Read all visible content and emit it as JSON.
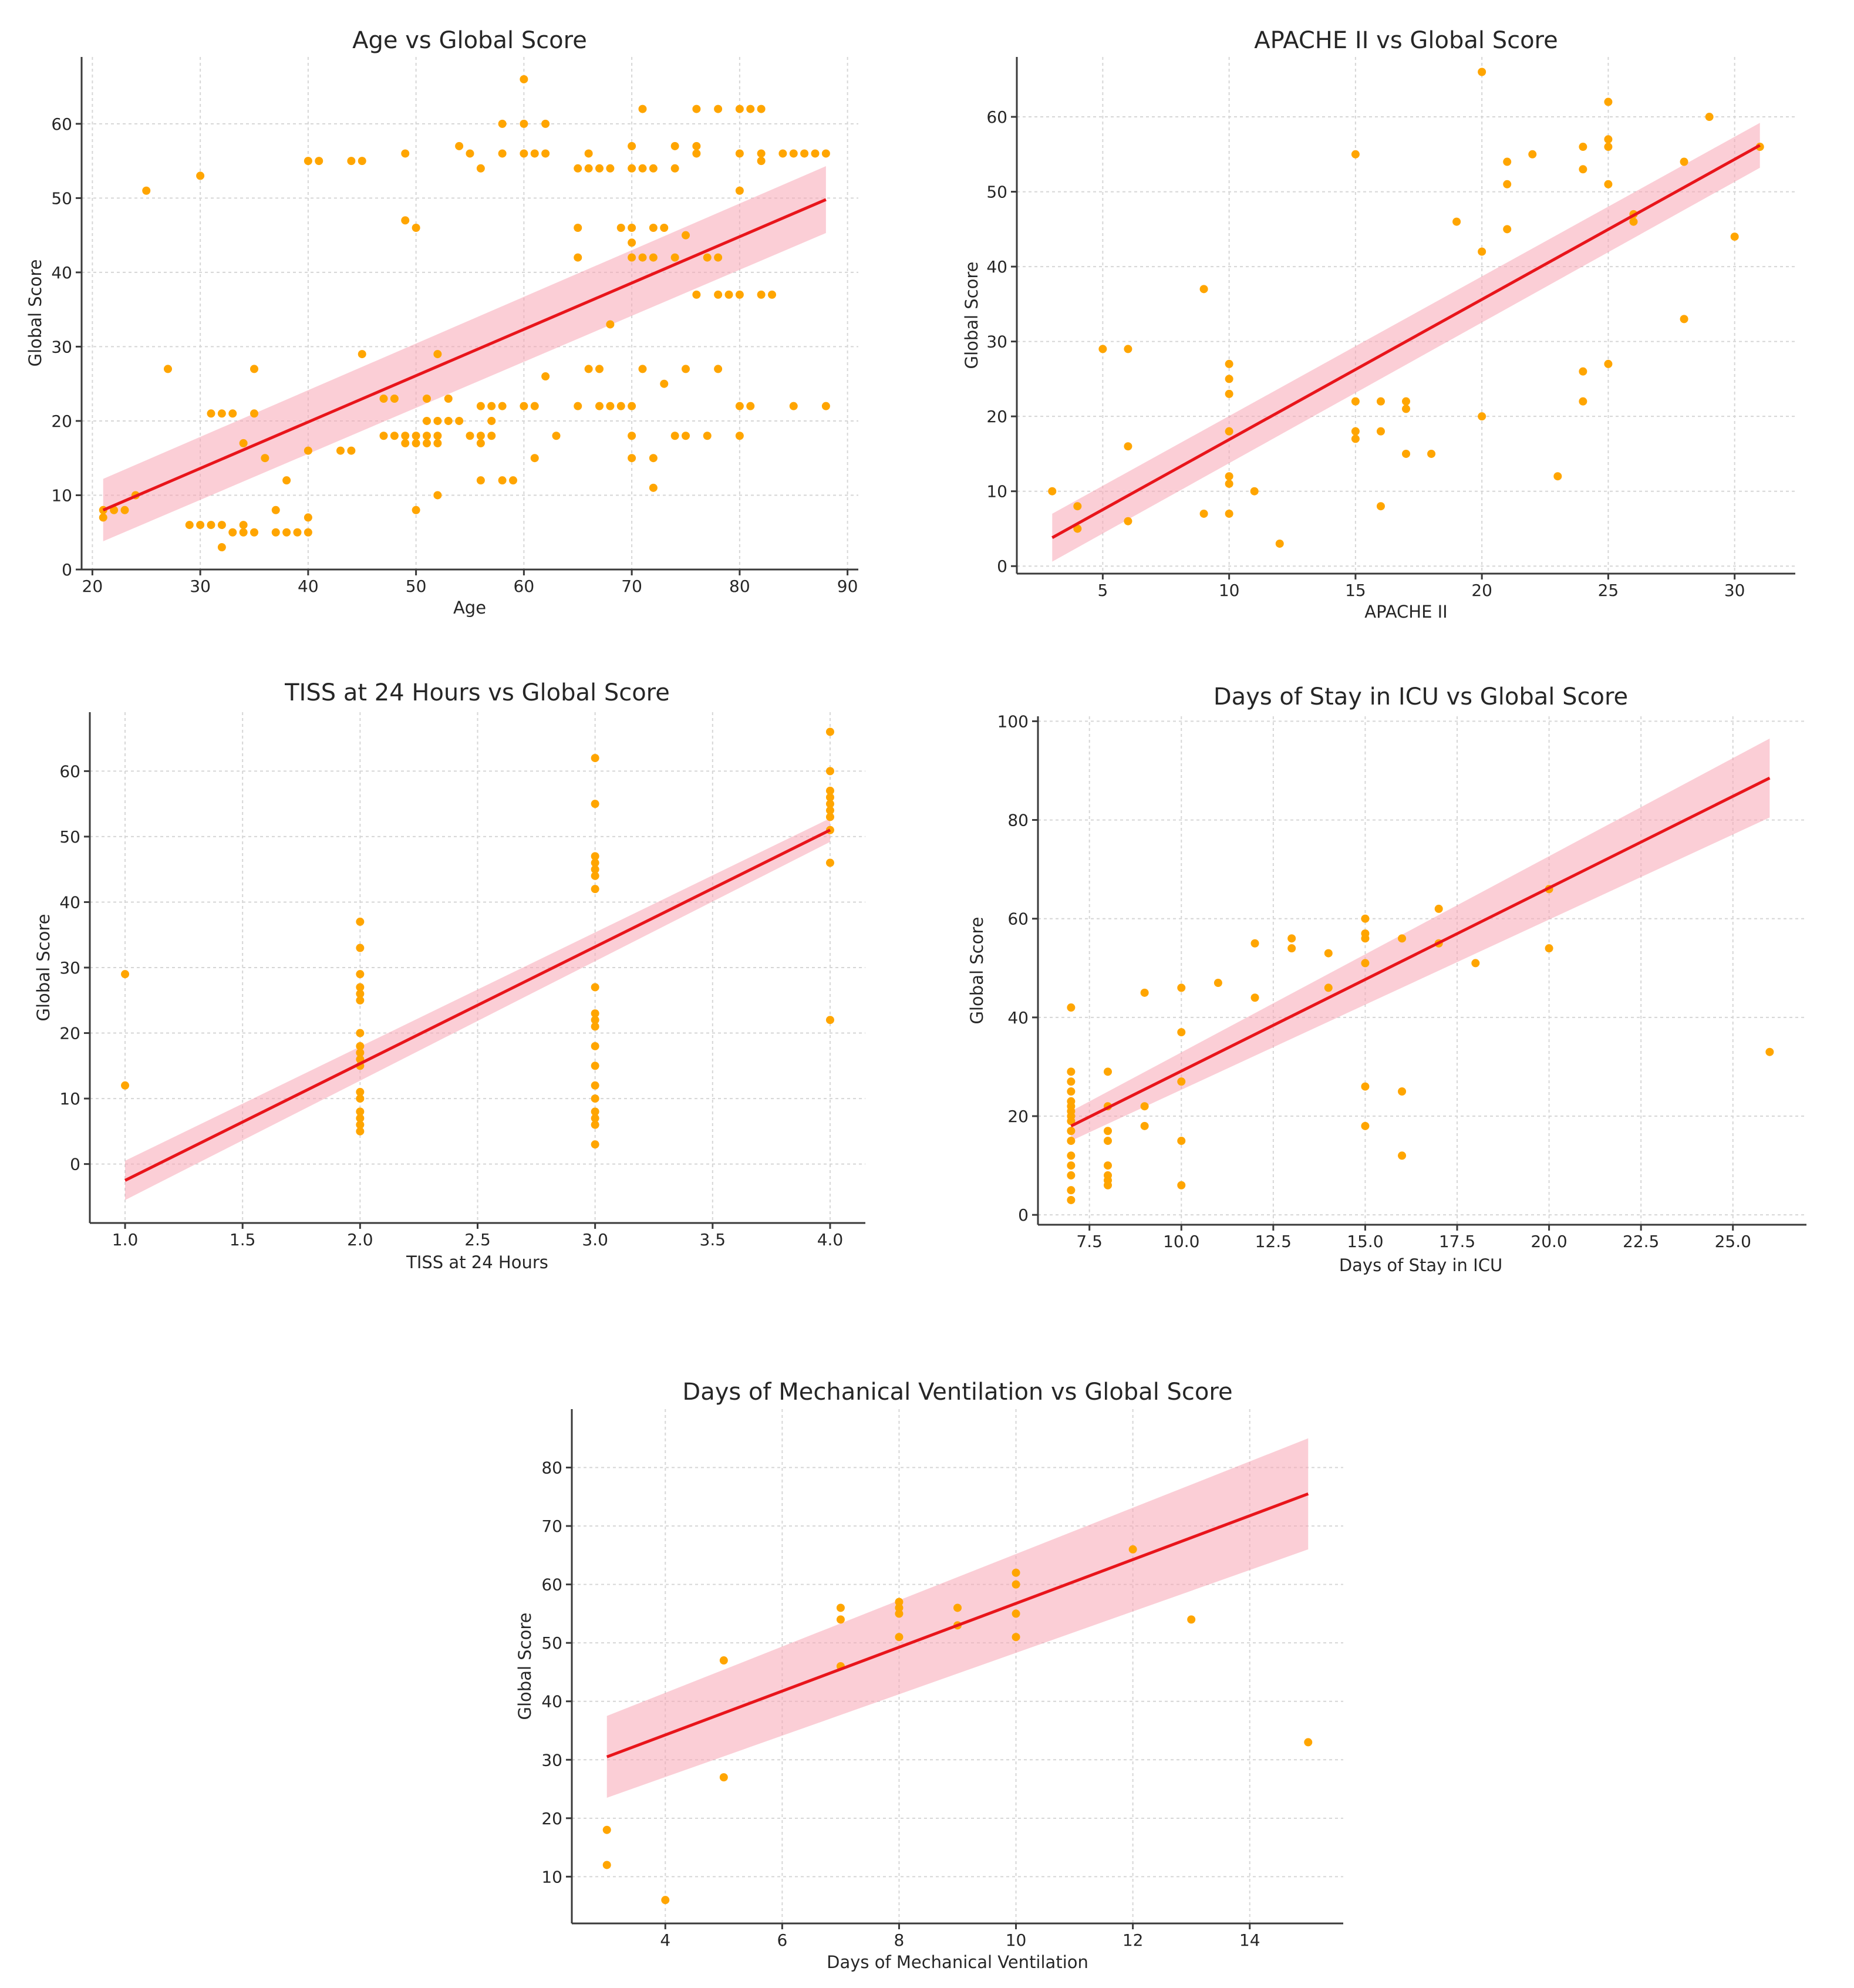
{
  "chart_data": [
    {
      "id": "age",
      "type": "scatter",
      "title": "Age vs Global Score",
      "xlabel": "Age",
      "ylabel": "Global Score",
      "xlim": [
        19,
        91
      ],
      "ylim": [
        0,
        69
      ],
      "xticks": [
        20,
        30,
        40,
        50,
        60,
        70,
        80,
        90
      ],
      "yticks": [
        0,
        10,
        20,
        30,
        40,
        50,
        60
      ],
      "x_decimals": 0,
      "grid": true,
      "points": [
        [
          21,
          7
        ],
        [
          21,
          8
        ],
        [
          22,
          8
        ],
        [
          23,
          8
        ],
        [
          24,
          10
        ],
        [
          25,
          51
        ],
        [
          27,
          27
        ],
        [
          29,
          6
        ],
        [
          30,
          6
        ],
        [
          30,
          53
        ],
        [
          31,
          6
        ],
        [
          31,
          21
        ],
        [
          32,
          3
        ],
        [
          32,
          6
        ],
        [
          32,
          21
        ],
        [
          33,
          5
        ],
        [
          33,
          21
        ],
        [
          34,
          5
        ],
        [
          34,
          6
        ],
        [
          34,
          17
        ],
        [
          35,
          5
        ],
        [
          35,
          21
        ],
        [
          35,
          27
        ],
        [
          36,
          15
        ],
        [
          37,
          5
        ],
        [
          37,
          8
        ],
        [
          38,
          5
        ],
        [
          38,
          12
        ],
        [
          39,
          5
        ],
        [
          40,
          5
        ],
        [
          40,
          7
        ],
        [
          40,
          16
        ],
        [
          40,
          55
        ],
        [
          41,
          55
        ],
        [
          43,
          16
        ],
        [
          44,
          16
        ],
        [
          44,
          55
        ],
        [
          45,
          29
        ],
        [
          45,
          55
        ],
        [
          47,
          18
        ],
        [
          47,
          23
        ],
        [
          48,
          23
        ],
        [
          48,
          18
        ],
        [
          49,
          17
        ],
        [
          49,
          18
        ],
        [
          49,
          47
        ],
        [
          49,
          56
        ],
        [
          50,
          8
        ],
        [
          50,
          17
        ],
        [
          50,
          18
        ],
        [
          50,
          46
        ],
        [
          51,
          17
        ],
        [
          51,
          18
        ],
        [
          51,
          20
        ],
        [
          51,
          23
        ],
        [
          52,
          10
        ],
        [
          52,
          17
        ],
        [
          52,
          18
        ],
        [
          52,
          20
        ],
        [
          52,
          29
        ],
        [
          53,
          20
        ],
        [
          53,
          23
        ],
        [
          54,
          20
        ],
        [
          54,
          57
        ],
        [
          55,
          18
        ],
        [
          55,
          56
        ],
        [
          56,
          12
        ],
        [
          56,
          17
        ],
        [
          56,
          18
        ],
        [
          56,
          22
        ],
        [
          56,
          54
        ],
        [
          57,
          20
        ],
        [
          57,
          18
        ],
        [
          57,
          22
        ],
        [
          58,
          12
        ],
        [
          58,
          22
        ],
        [
          58,
          56
        ],
        [
          58,
          60
        ],
        [
          59,
          12
        ],
        [
          60,
          22
        ],
        [
          60,
          56
        ],
        [
          60,
          60
        ],
        [
          60,
          66
        ],
        [
          61,
          15
        ],
        [
          61,
          22
        ],
        [
          61,
          56
        ],
        [
          62,
          26
        ],
        [
          62,
          56
        ],
        [
          62,
          60
        ],
        [
          63,
          18
        ],
        [
          65,
          22
        ],
        [
          65,
          42
        ],
        [
          65,
          46
        ],
        [
          65,
          54
        ],
        [
          66,
          27
        ],
        [
          66,
          54
        ],
        [
          66,
          56
        ],
        [
          67,
          22
        ],
        [
          67,
          27
        ],
        [
          67,
          54
        ],
        [
          68,
          22
        ],
        [
          68,
          33
        ],
        [
          68,
          54
        ],
        [
          69,
          22
        ],
        [
          69,
          46
        ],
        [
          70,
          15
        ],
        [
          70,
          18
        ],
        [
          70,
          22
        ],
        [
          70,
          42
        ],
        [
          70,
          44
        ],
        [
          70,
          46
        ],
        [
          70,
          54
        ],
        [
          70,
          57
        ],
        [
          71,
          27
        ],
        [
          71,
          42
        ],
        [
          71,
          54
        ],
        [
          71,
          62
        ],
        [
          72,
          11
        ],
        [
          72,
          15
        ],
        [
          72,
          42
        ],
        [
          72,
          46
        ],
        [
          72,
          54
        ],
        [
          73,
          25
        ],
        [
          73,
          46
        ],
        [
          74,
          18
        ],
        [
          74,
          42
        ],
        [
          74,
          54
        ],
        [
          74,
          57
        ],
        [
          75,
          18
        ],
        [
          75,
          27
        ],
        [
          75,
          45
        ],
        [
          76,
          37
        ],
        [
          76,
          56
        ],
        [
          76,
          57
        ],
        [
          76,
          62
        ],
        [
          77,
          18
        ],
        [
          77,
          42
        ],
        [
          78,
          27
        ],
        [
          78,
          37
        ],
        [
          78,
          42
        ],
        [
          78,
          62
        ],
        [
          79,
          37
        ],
        [
          80,
          18
        ],
        [
          80,
          22
        ],
        [
          80,
          37
        ],
        [
          80,
          51
        ],
        [
          80,
          56
        ],
        [
          80,
          62
        ],
        [
          81,
          22
        ],
        [
          81,
          62
        ],
        [
          82,
          55
        ],
        [
          82,
          56
        ],
        [
          82,
          62
        ],
        [
          82,
          37
        ],
        [
          83,
          37
        ],
        [
          84,
          56
        ],
        [
          85,
          22
        ],
        [
          85,
          56
        ],
        [
          86,
          56
        ],
        [
          87,
          56
        ],
        [
          88,
          22
        ],
        [
          88,
          56
        ]
      ],
      "fit": {
        "x0": 21,
        "y0": 8.0,
        "x1": 88,
        "y1": 49.8,
        "ci0": 4.2,
        "ci1": 4.5
      }
    },
    {
      "id": "apache",
      "type": "scatter",
      "title": "APACHE II vs Global Score",
      "xlabel": "APACHE II",
      "ylabel": "Global Score",
      "xlim": [
        1.6,
        32.4
      ],
      "ylim": [
        -1,
        68
      ],
      "xticks": [
        5,
        10,
        15,
        20,
        25,
        30
      ],
      "yticks": [
        0,
        10,
        20,
        30,
        40,
        50,
        60
      ],
      "x_decimals": 0,
      "grid": true,
      "points": [
        [
          3,
          10
        ],
        [
          4,
          5
        ],
        [
          4,
          8
        ],
        [
          5,
          29
        ],
        [
          6,
          6
        ],
        [
          6,
          16
        ],
        [
          6,
          29
        ],
        [
          9,
          7
        ],
        [
          9,
          37
        ],
        [
          10,
          7
        ],
        [
          10,
          11
        ],
        [
          10,
          12
        ],
        [
          10,
          18
        ],
        [
          10,
          23
        ],
        [
          10,
          25
        ],
        [
          10,
          27
        ],
        [
          11,
          10
        ],
        [
          12,
          3
        ],
        [
          15,
          17
        ],
        [
          15,
          18
        ],
        [
          15,
          22
        ],
        [
          15,
          55
        ],
        [
          16,
          8
        ],
        [
          16,
          18
        ],
        [
          16,
          22
        ],
        [
          17,
          15
        ],
        [
          17,
          21
        ],
        [
          17,
          22
        ],
        [
          18,
          15
        ],
        [
          19,
          46
        ],
        [
          20,
          20
        ],
        [
          20,
          42
        ],
        [
          20,
          66
        ],
        [
          21,
          45
        ],
        [
          21,
          51
        ],
        [
          21,
          54
        ],
        [
          22,
          55
        ],
        [
          23,
          12
        ],
        [
          24,
          22
        ],
        [
          24,
          26
        ],
        [
          24,
          53
        ],
        [
          24,
          56
        ],
        [
          25,
          27
        ],
        [
          25,
          51
        ],
        [
          25,
          56
        ],
        [
          25,
          57
        ],
        [
          25,
          62
        ],
        [
          26,
          46
        ],
        [
          26,
          47
        ],
        [
          28,
          33
        ],
        [
          28,
          54
        ],
        [
          29,
          60
        ],
        [
          30,
          44
        ],
        [
          31,
          56
        ]
      ],
      "fit": {
        "x0": 3,
        "y0": 3.8,
        "x1": 31,
        "y1": 56.2,
        "ci0": 3.2,
        "ci1": 3.0
      }
    },
    {
      "id": "tiss",
      "type": "scatter",
      "title": "TISS at 24 Hours vs Global Score",
      "xlabel": "TISS at 24 Hours",
      "ylabel": "Global Score",
      "xlim": [
        0.85,
        4.15
      ],
      "ylim": [
        -9,
        69
      ],
      "xticks": [
        1.0,
        1.5,
        2.0,
        2.5,
        3.0,
        3.5,
        4.0
      ],
      "yticks": [
        0,
        10,
        20,
        30,
        40,
        50,
        60
      ],
      "x_decimals": 1,
      "grid": true,
      "points": [
        [
          1,
          12
        ],
        [
          1,
          29
        ],
        [
          2,
          5
        ],
        [
          2,
          6
        ],
        [
          2,
          7
        ],
        [
          2,
          8
        ],
        [
          2,
          10
        ],
        [
          2,
          11
        ],
        [
          2,
          15
        ],
        [
          2,
          16
        ],
        [
          2,
          17
        ],
        [
          2,
          18
        ],
        [
          2,
          20
        ],
        [
          2,
          25
        ],
        [
          2,
          26
        ],
        [
          2,
          27
        ],
        [
          2,
          29
        ],
        [
          2,
          33
        ],
        [
          2,
          37
        ],
        [
          3,
          3
        ],
        [
          3,
          6
        ],
        [
          3,
          7
        ],
        [
          3,
          8
        ],
        [
          3,
          10
        ],
        [
          3,
          12
        ],
        [
          3,
          15
        ],
        [
          3,
          18
        ],
        [
          3,
          21
        ],
        [
          3,
          22
        ],
        [
          3,
          23
        ],
        [
          3,
          27
        ],
        [
          3,
          42
        ],
        [
          3,
          44
        ],
        [
          3,
          45
        ],
        [
          3,
          46
        ],
        [
          3,
          47
        ],
        [
          3,
          55
        ],
        [
          3,
          62
        ],
        [
          4,
          22
        ],
        [
          4,
          46
        ],
        [
          4,
          51
        ],
        [
          4,
          53
        ],
        [
          4,
          54
        ],
        [
          4,
          55
        ],
        [
          4,
          56
        ],
        [
          4,
          57
        ],
        [
          4,
          60
        ],
        [
          4,
          66
        ]
      ],
      "fit": {
        "x0": 1,
        "y0": -2.5,
        "x1": 4,
        "y1": 51.0,
        "ci0": 3.0,
        "ci1": 1.8
      }
    },
    {
      "id": "icu",
      "type": "scatter",
      "title": "Days of Stay in ICU vs Global Score",
      "xlabel": "Days of Stay in ICU",
      "ylabel": "Global Score",
      "xlim": [
        6.1,
        27.0
      ],
      "ylim": [
        -2,
        101
      ],
      "xticks": [
        7.5,
        10.0,
        12.5,
        15.0,
        17.5,
        20.0,
        22.5,
        25.0
      ],
      "yticks": [
        0,
        20,
        40,
        60,
        80,
        100
      ],
      "x_decimals": 1,
      "grid": true,
      "points": [
        [
          7,
          3
        ],
        [
          7,
          5
        ],
        [
          7,
          8
        ],
        [
          7,
          10
        ],
        [
          7,
          12
        ],
        [
          7,
          15
        ],
        [
          7,
          17
        ],
        [
          7,
          19
        ],
        [
          7,
          20
        ],
        [
          7,
          21
        ],
        [
          7,
          22
        ],
        [
          7,
          23
        ],
        [
          7,
          25
        ],
        [
          7,
          27
        ],
        [
          7,
          29
        ],
        [
          7,
          42
        ],
        [
          8,
          6
        ],
        [
          8,
          7
        ],
        [
          8,
          8
        ],
        [
          8,
          10
        ],
        [
          8,
          15
        ],
        [
          8,
          17
        ],
        [
          8,
          22
        ],
        [
          8,
          29
        ],
        [
          9,
          18
        ],
        [
          9,
          22
        ],
        [
          9,
          45
        ],
        [
          10,
          6
        ],
        [
          10,
          15
        ],
        [
          10,
          27
        ],
        [
          10,
          37
        ],
        [
          10,
          46
        ],
        [
          11,
          47
        ],
        [
          12,
          44
        ],
        [
          12,
          55
        ],
        [
          13,
          54
        ],
        [
          13,
          56
        ],
        [
          14,
          46
        ],
        [
          14,
          53
        ],
        [
          15,
          18
        ],
        [
          15,
          26
        ],
        [
          15,
          51
        ],
        [
          15,
          56
        ],
        [
          15,
          57
        ],
        [
          15,
          60
        ],
        [
          16,
          12
        ],
        [
          16,
          25
        ],
        [
          16,
          56
        ],
        [
          17,
          55
        ],
        [
          17,
          62
        ],
        [
          18,
          51
        ],
        [
          20,
          54
        ],
        [
          20,
          66
        ],
        [
          26,
          33
        ]
      ],
      "fit": {
        "x0": 7,
        "y0": 18.0,
        "x1": 26,
        "y1": 88.5,
        "ci0": 3.0,
        "ci1": 8.0
      }
    },
    {
      "id": "ventilation",
      "type": "scatter",
      "title": "Days of Mechanical Ventilation vs Global Score",
      "xlabel": "Days of Mechanical Ventilation",
      "ylabel": "Global Score",
      "xlim": [
        2.4,
        15.6
      ],
      "ylim": [
        2,
        90
      ],
      "xticks": [
        4,
        6,
        8,
        10,
        12,
        14
      ],
      "yticks": [
        10,
        20,
        30,
        40,
        50,
        60,
        70,
        80
      ],
      "x_decimals": 0,
      "grid": true,
      "points": [
        [
          3,
          12
        ],
        [
          3,
          18
        ],
        [
          4,
          6
        ],
        [
          5,
          27
        ],
        [
          5,
          47
        ],
        [
          7,
          46
        ],
        [
          7,
          54
        ],
        [
          7,
          56
        ],
        [
          8,
          51
        ],
        [
          8,
          55
        ],
        [
          8,
          56
        ],
        [
          8,
          57
        ],
        [
          9,
          53
        ],
        [
          9,
          56
        ],
        [
          10,
          51
        ],
        [
          10,
          55
        ],
        [
          10,
          60
        ],
        [
          10,
          62
        ],
        [
          12,
          66
        ],
        [
          13,
          54
        ],
        [
          15,
          33
        ]
      ],
      "fit": {
        "x0": 3,
        "y0": 30.5,
        "x1": 15,
        "y1": 75.5,
        "ci0": 7.0,
        "ci1": 9.5
      }
    }
  ]
}
